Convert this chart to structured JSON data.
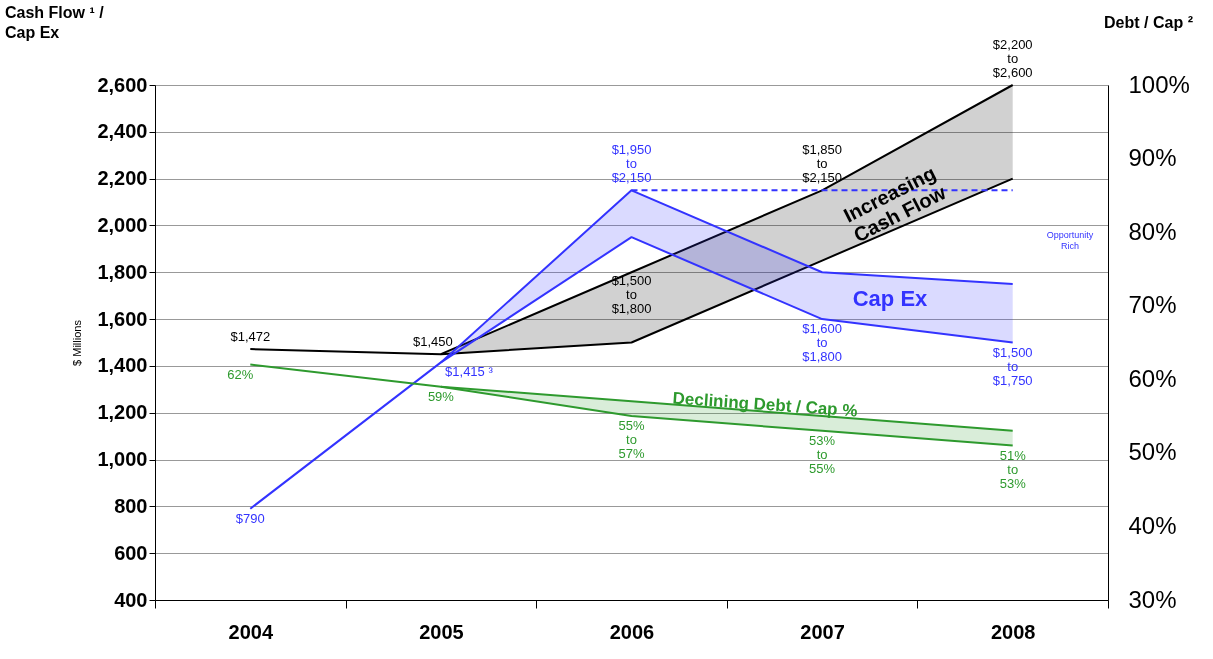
{
  "chart_data": {
    "type": "line",
    "title": "Cash Flow ¹ /\nCap Ex",
    "ylabel": "$ Millions",
    "y2label": "Debt / Cap ²",
    "categories": [
      "2004",
      "2005",
      "2006",
      "2007",
      "2008"
    ],
    "series": [
      {
        "color": "#000000",
        "values": [
          1472,
          1450,
          1500,
          1850,
          2200
        ],
        "lower": [
          null,
          1450,
          1500,
          1850,
          2200
        ],
        "upper": [
          null,
          1450,
          1800,
          2150,
          2600
        ],
        "value_labels": [
          "$1,472",
          "$1,450",
          "$1,500\nto\n$1,800",
          null,
          null
        ]
      },
      {
        "color": "#3333ff",
        "values": [
          790,
          1415,
          1950,
          1600,
          1500
        ],
        "lower": [
          null,
          1415,
          1950,
          1600,
          1500
        ],
        "upper": [
          null,
          1415,
          2150,
          1800,
          1750
        ],
        "value_labels": [
          "$790",
          "$1,415 ³",
          null,
          "$1,600\nto\n$1,800",
          "$1,500\nto\n$1,750"
        ]
      },
      {
        "color": "#3333ff",
        "values": [
          null,
          null,
          2150,
          2150,
          2150
        ],
        "line_style": "dashed"
      },
      {
        "color": "#2e9a2e",
        "axis": "y2",
        "values": [
          62,
          59,
          55,
          53,
          51
        ],
        "lower": [
          null,
          59,
          55,
          53,
          51
        ],
        "upper": [
          null,
          59,
          57,
          55,
          53
        ],
        "value_labels": [
          "62%",
          "59%",
          "55%\nto\n57%",
          "53%\nto\n55%",
          "51%\nto\n53%"
        ]
      }
    ],
    "ylim": [
      400,
      2600
    ],
    "yticks": [
      400,
      600,
      800,
      {
        "value": 1000,
        "label": "1,000"
      },
      {
        "value": 1200,
        "label": "1,200"
      },
      {
        "value": 1400,
        "label": "1,400"
      },
      {
        "value": 1600,
        "label": "1,600"
      },
      {
        "value": 1800,
        "label": "1,800"
      },
      {
        "value": 2000,
        "label": "2,000"
      },
      {
        "value": 2200,
        "label": "2,200"
      },
      {
        "value": 2400,
        "label": "2,400"
      },
      {
        "value": 2600,
        "label": "2,600"
      }
    ],
    "y2lim": [
      30,
      100
    ],
    "y2ticks": [
      {
        "value": 30,
        "label": "30%"
      },
      {
        "value": 40,
        "label": "40%"
      },
      {
        "value": 50,
        "label": "50%"
      },
      {
        "value": 60,
        "label": "60%"
      },
      {
        "value": 70,
        "label": "70%"
      },
      {
        "value": 80,
        "label": "80%"
      },
      {
        "value": 90,
        "label": "90%"
      },
      {
        "value": 100,
        "label": "100%"
      }
    ],
    "annotations": [
      {
        "text": "$1,950\nto\n$2,150",
        "x": "2006",
        "y": 2150
      },
      {
        "text": "$1,850\nto\n$2,150",
        "x": "2007",
        "y": 2150
      },
      {
        "text": "$2,200\nto\n$2,600",
        "x": "2008",
        "y": 2600
      },
      "Increasing\nCash Flow",
      "Cap Ex",
      "Declining Debt / Cap %",
      "Opportunity\nRich"
    ],
    "grid": "y",
    "marker": "none",
    "line_style": "solid"
  }
}
